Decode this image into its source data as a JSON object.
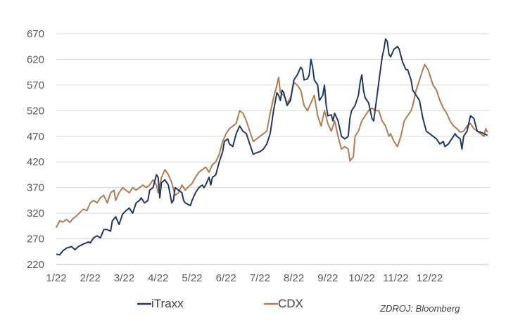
{
  "chart_data": {
    "type": "line",
    "title": "",
    "xlabel": "",
    "ylabel": "",
    "ylim": [
      220,
      670
    ],
    "yticks": [
      220,
      270,
      320,
      370,
      420,
      470,
      520,
      570,
      620,
      670
    ],
    "xticks": [
      "1/22",
      "2/22",
      "3/22",
      "4/22",
      "5/22",
      "6/22",
      "7/22",
      "8/22",
      "9/22",
      "10/22",
      "11/22",
      "12/22"
    ],
    "grid": "horizontal",
    "legend_position": "bottom",
    "source_text": "ZDROJ: Bloomberg",
    "series": [
      {
        "name": "iTraxx",
        "color": "#1f3864",
        "points": [
          [
            0.0,
            240
          ],
          [
            0.1,
            239
          ],
          [
            0.2,
            247
          ],
          [
            0.3,
            252
          ],
          [
            0.45,
            255
          ],
          [
            0.55,
            249
          ],
          [
            0.65,
            255
          ],
          [
            0.8,
            260
          ],
          [
            0.95,
            264
          ],
          [
            1.0,
            262
          ],
          [
            1.1,
            272
          ],
          [
            1.2,
            276
          ],
          [
            1.3,
            272
          ],
          [
            1.4,
            288
          ],
          [
            1.5,
            288
          ],
          [
            1.6,
            285
          ],
          [
            1.65,
            305
          ],
          [
            1.75,
            313
          ],
          [
            1.85,
            298
          ],
          [
            1.95,
            318
          ],
          [
            2.05,
            325
          ],
          [
            2.15,
            330
          ],
          [
            2.25,
            320
          ],
          [
            2.35,
            340
          ],
          [
            2.45,
            345
          ],
          [
            2.5,
            350
          ],
          [
            2.6,
            340
          ],
          [
            2.7,
            345
          ],
          [
            2.75,
            365
          ],
          [
            2.85,
            370
          ],
          [
            2.95,
            395
          ],
          [
            3.0,
            390
          ],
          [
            3.05,
            350
          ],
          [
            3.1,
            380
          ],
          [
            3.2,
            385
          ],
          [
            3.3,
            375
          ],
          [
            3.4,
            340
          ],
          [
            3.45,
            345
          ],
          [
            3.5,
            370
          ],
          [
            3.6,
            365
          ],
          [
            3.7,
            360
          ],
          [
            3.75,
            345
          ],
          [
            3.8,
            340
          ],
          [
            3.95,
            335
          ],
          [
            4.0,
            345
          ],
          [
            4.1,
            360
          ],
          [
            4.2,
            370
          ],
          [
            4.3,
            375
          ],
          [
            4.35,
            370
          ],
          [
            4.4,
            375
          ],
          [
            4.5,
            390
          ],
          [
            4.55,
            375
          ],
          [
            4.6,
            390
          ],
          [
            4.7,
            395
          ],
          [
            4.8,
            420
          ],
          [
            4.9,
            440
          ],
          [
            4.95,
            460
          ],
          [
            5.05,
            465
          ],
          [
            5.1,
            455
          ],
          [
            5.2,
            450
          ],
          [
            5.3,
            475
          ],
          [
            5.4,
            490
          ],
          [
            5.5,
            480
          ],
          [
            5.6,
            475
          ],
          [
            5.7,
            455
          ],
          [
            5.8,
            435
          ],
          [
            5.9,
            438
          ],
          [
            6.0,
            440
          ],
          [
            6.1,
            445
          ],
          [
            6.2,
            455
          ],
          [
            6.3,
            475
          ],
          [
            6.4,
            520
          ],
          [
            6.5,
            555
          ],
          [
            6.55,
            550
          ],
          [
            6.6,
            540
          ],
          [
            6.65,
            560
          ],
          [
            6.7,
            555
          ],
          [
            6.8,
            530
          ],
          [
            6.9,
            540
          ],
          [
            7.0,
            580
          ],
          [
            7.1,
            590
          ],
          [
            7.2,
            605
          ],
          [
            7.25,
            600
          ],
          [
            7.3,
            580
          ],
          [
            7.4,
            582
          ],
          [
            7.45,
            590
          ],
          [
            7.5,
            620
          ],
          [
            7.55,
            605
          ],
          [
            7.6,
            580
          ],
          [
            7.7,
            570
          ],
          [
            7.75,
            540
          ],
          [
            7.85,
            550
          ],
          [
            7.9,
            570
          ],
          [
            7.95,
            530
          ],
          [
            8.0,
            510
          ],
          [
            8.1,
            512
          ],
          [
            8.15,
            500
          ],
          [
            8.2,
            515
          ],
          [
            8.3,
            500
          ],
          [
            8.4,
            470
          ],
          [
            8.5,
            465
          ],
          [
            8.6,
            470
          ],
          [
            8.65,
            505
          ],
          [
            8.7,
            520
          ],
          [
            8.8,
            530
          ],
          [
            8.85,
            540
          ],
          [
            8.9,
            550
          ],
          [
            8.95,
            575
          ],
          [
            9.0,
            590
          ],
          [
            9.05,
            560
          ],
          [
            9.1,
            545
          ],
          [
            9.2,
            535
          ],
          [
            9.3,
            505
          ],
          [
            9.35,
            500
          ],
          [
            9.45,
            550
          ],
          [
            9.5,
            575
          ],
          [
            9.55,
            600
          ],
          [
            9.6,
            625
          ],
          [
            9.65,
            640
          ],
          [
            9.7,
            660
          ],
          [
            9.75,
            655
          ],
          [
            9.8,
            630
          ],
          [
            9.85,
            625
          ],
          [
            9.95,
            640
          ],
          [
            10.05,
            645
          ],
          [
            10.1,
            640
          ],
          [
            10.2,
            615
          ],
          [
            10.3,
            600
          ],
          [
            10.35,
            600
          ],
          [
            10.45,
            580
          ],
          [
            10.5,
            560
          ],
          [
            10.6,
            550
          ],
          [
            10.65,
            545
          ],
          [
            10.7,
            540
          ],
          [
            10.8,
            505
          ],
          [
            10.9,
            480
          ],
          [
            11.0,
            475
          ],
          [
            11.1,
            470
          ],
          [
            11.2,
            465
          ],
          [
            11.3,
            455
          ],
          [
            11.4,
            460
          ],
          [
            11.45,
            450
          ],
          [
            11.55,
            455
          ],
          [
            11.65,
            465
          ],
          [
            11.75,
            475
          ],
          [
            11.8,
            470
          ],
          [
            11.9,
            465
          ],
          [
            11.95,
            445
          ],
          [
            12.0,
            470
          ],
          [
            12.1,
            480
          ],
          [
            12.2,
            510
          ],
          [
            12.3,
            505
          ],
          [
            12.4,
            480
          ],
          [
            12.5,
            478
          ],
          [
            12.6,
            475
          ],
          [
            12.7,
            472
          ]
        ]
      },
      {
        "name": "CDX",
        "color": "#b07d52",
        "points": [
          [
            0.0,
            292
          ],
          [
            0.1,
            305
          ],
          [
            0.2,
            303
          ],
          [
            0.3,
            308
          ],
          [
            0.4,
            302
          ],
          [
            0.5,
            310
          ],
          [
            0.6,
            315
          ],
          [
            0.7,
            322
          ],
          [
            0.8,
            328
          ],
          [
            0.9,
            325
          ],
          [
            1.0,
            340
          ],
          [
            1.1,
            345
          ],
          [
            1.2,
            340
          ],
          [
            1.3,
            350
          ],
          [
            1.4,
            355
          ],
          [
            1.5,
            340
          ],
          [
            1.6,
            360
          ],
          [
            1.7,
            365
          ],
          [
            1.75,
            345
          ],
          [
            1.85,
            360
          ],
          [
            1.95,
            370
          ],
          [
            2.05,
            365
          ],
          [
            2.15,
            360
          ],
          [
            2.25,
            370
          ],
          [
            2.35,
            365
          ],
          [
            2.45,
            370
          ],
          [
            2.55,
            375
          ],
          [
            2.65,
            370
          ],
          [
            2.75,
            375
          ],
          [
            2.85,
            385
          ],
          [
            2.95,
            375
          ],
          [
            3.0,
            360
          ],
          [
            3.1,
            390
          ],
          [
            3.2,
            405
          ],
          [
            3.3,
            395
          ],
          [
            3.4,
            380
          ],
          [
            3.5,
            355
          ],
          [
            3.6,
            360
          ],
          [
            3.7,
            375
          ],
          [
            3.8,
            365
          ],
          [
            3.9,
            372
          ],
          [
            4.0,
            378
          ],
          [
            4.1,
            390
          ],
          [
            4.2,
            400
          ],
          [
            4.3,
            405
          ],
          [
            4.4,
            410
          ],
          [
            4.5,
            400
          ],
          [
            4.6,
            415
          ],
          [
            4.7,
            420
          ],
          [
            4.8,
            435
          ],
          [
            4.9,
            460
          ],
          [
            5.0,
            475
          ],
          [
            5.1,
            485
          ],
          [
            5.2,
            490
          ],
          [
            5.3,
            495
          ],
          [
            5.4,
            520
          ],
          [
            5.5,
            515
          ],
          [
            5.6,
            500
          ],
          [
            5.7,
            480
          ],
          [
            5.8,
            460
          ],
          [
            5.9,
            465
          ],
          [
            6.0,
            470
          ],
          [
            6.1,
            475
          ],
          [
            6.2,
            480
          ],
          [
            6.3,
            515
          ],
          [
            6.4,
            545
          ],
          [
            6.5,
            570
          ],
          [
            6.55,
            585
          ],
          [
            6.6,
            555
          ],
          [
            6.7,
            550
          ],
          [
            6.8,
            535
          ],
          [
            6.9,
            545
          ],
          [
            7.0,
            575
          ],
          [
            7.1,
            570
          ],
          [
            7.2,
            560
          ],
          [
            7.3,
            530
          ],
          [
            7.4,
            520
          ],
          [
            7.5,
            535
          ],
          [
            7.6,
            550
          ],
          [
            7.7,
            510
          ],
          [
            7.8,
            490
          ],
          [
            7.9,
            520
          ],
          [
            8.0,
            495
          ],
          [
            8.1,
            480
          ],
          [
            8.2,
            500
          ],
          [
            8.3,
            470
          ],
          [
            8.4,
            445
          ],
          [
            8.5,
            450
          ],
          [
            8.6,
            445
          ],
          [
            8.65,
            422
          ],
          [
            8.75,
            430
          ],
          [
            8.8,
            470
          ],
          [
            8.9,
            480
          ],
          [
            9.0,
            500
          ],
          [
            9.1,
            510
          ],
          [
            9.2,
            520
          ],
          [
            9.3,
            525
          ],
          [
            9.4,
            520
          ],
          [
            9.5,
            520
          ],
          [
            9.6,
            500
          ],
          [
            9.7,
            490
          ],
          [
            9.8,
            470
          ],
          [
            9.85,
            475
          ],
          [
            9.95,
            460
          ],
          [
            10.05,
            450
          ],
          [
            10.15,
            470
          ],
          [
            10.25,
            500
          ],
          [
            10.35,
            510
          ],
          [
            10.45,
            520
          ],
          [
            10.5,
            530
          ],
          [
            10.55,
            545
          ],
          [
            10.6,
            560
          ],
          [
            10.7,
            580
          ],
          [
            10.8,
            600
          ],
          [
            10.85,
            610
          ],
          [
            10.95,
            600
          ],
          [
            11.0,
            590
          ],
          [
            11.1,
            570
          ],
          [
            11.2,
            560
          ],
          [
            11.3,
            540
          ],
          [
            11.4,
            525
          ],
          [
            11.5,
            515
          ],
          [
            11.6,
            500
          ],
          [
            11.7,
            490
          ],
          [
            11.8,
            485
          ],
          [
            11.9,
            478
          ],
          [
            12.0,
            480
          ],
          [
            12.1,
            490
          ],
          [
            12.2,
            495
          ],
          [
            12.3,
            485
          ],
          [
            12.4,
            480
          ],
          [
            12.5,
            475
          ],
          [
            12.6,
            470
          ],
          [
            12.65,
            485
          ],
          [
            12.7,
            478
          ]
        ]
      }
    ]
  }
}
